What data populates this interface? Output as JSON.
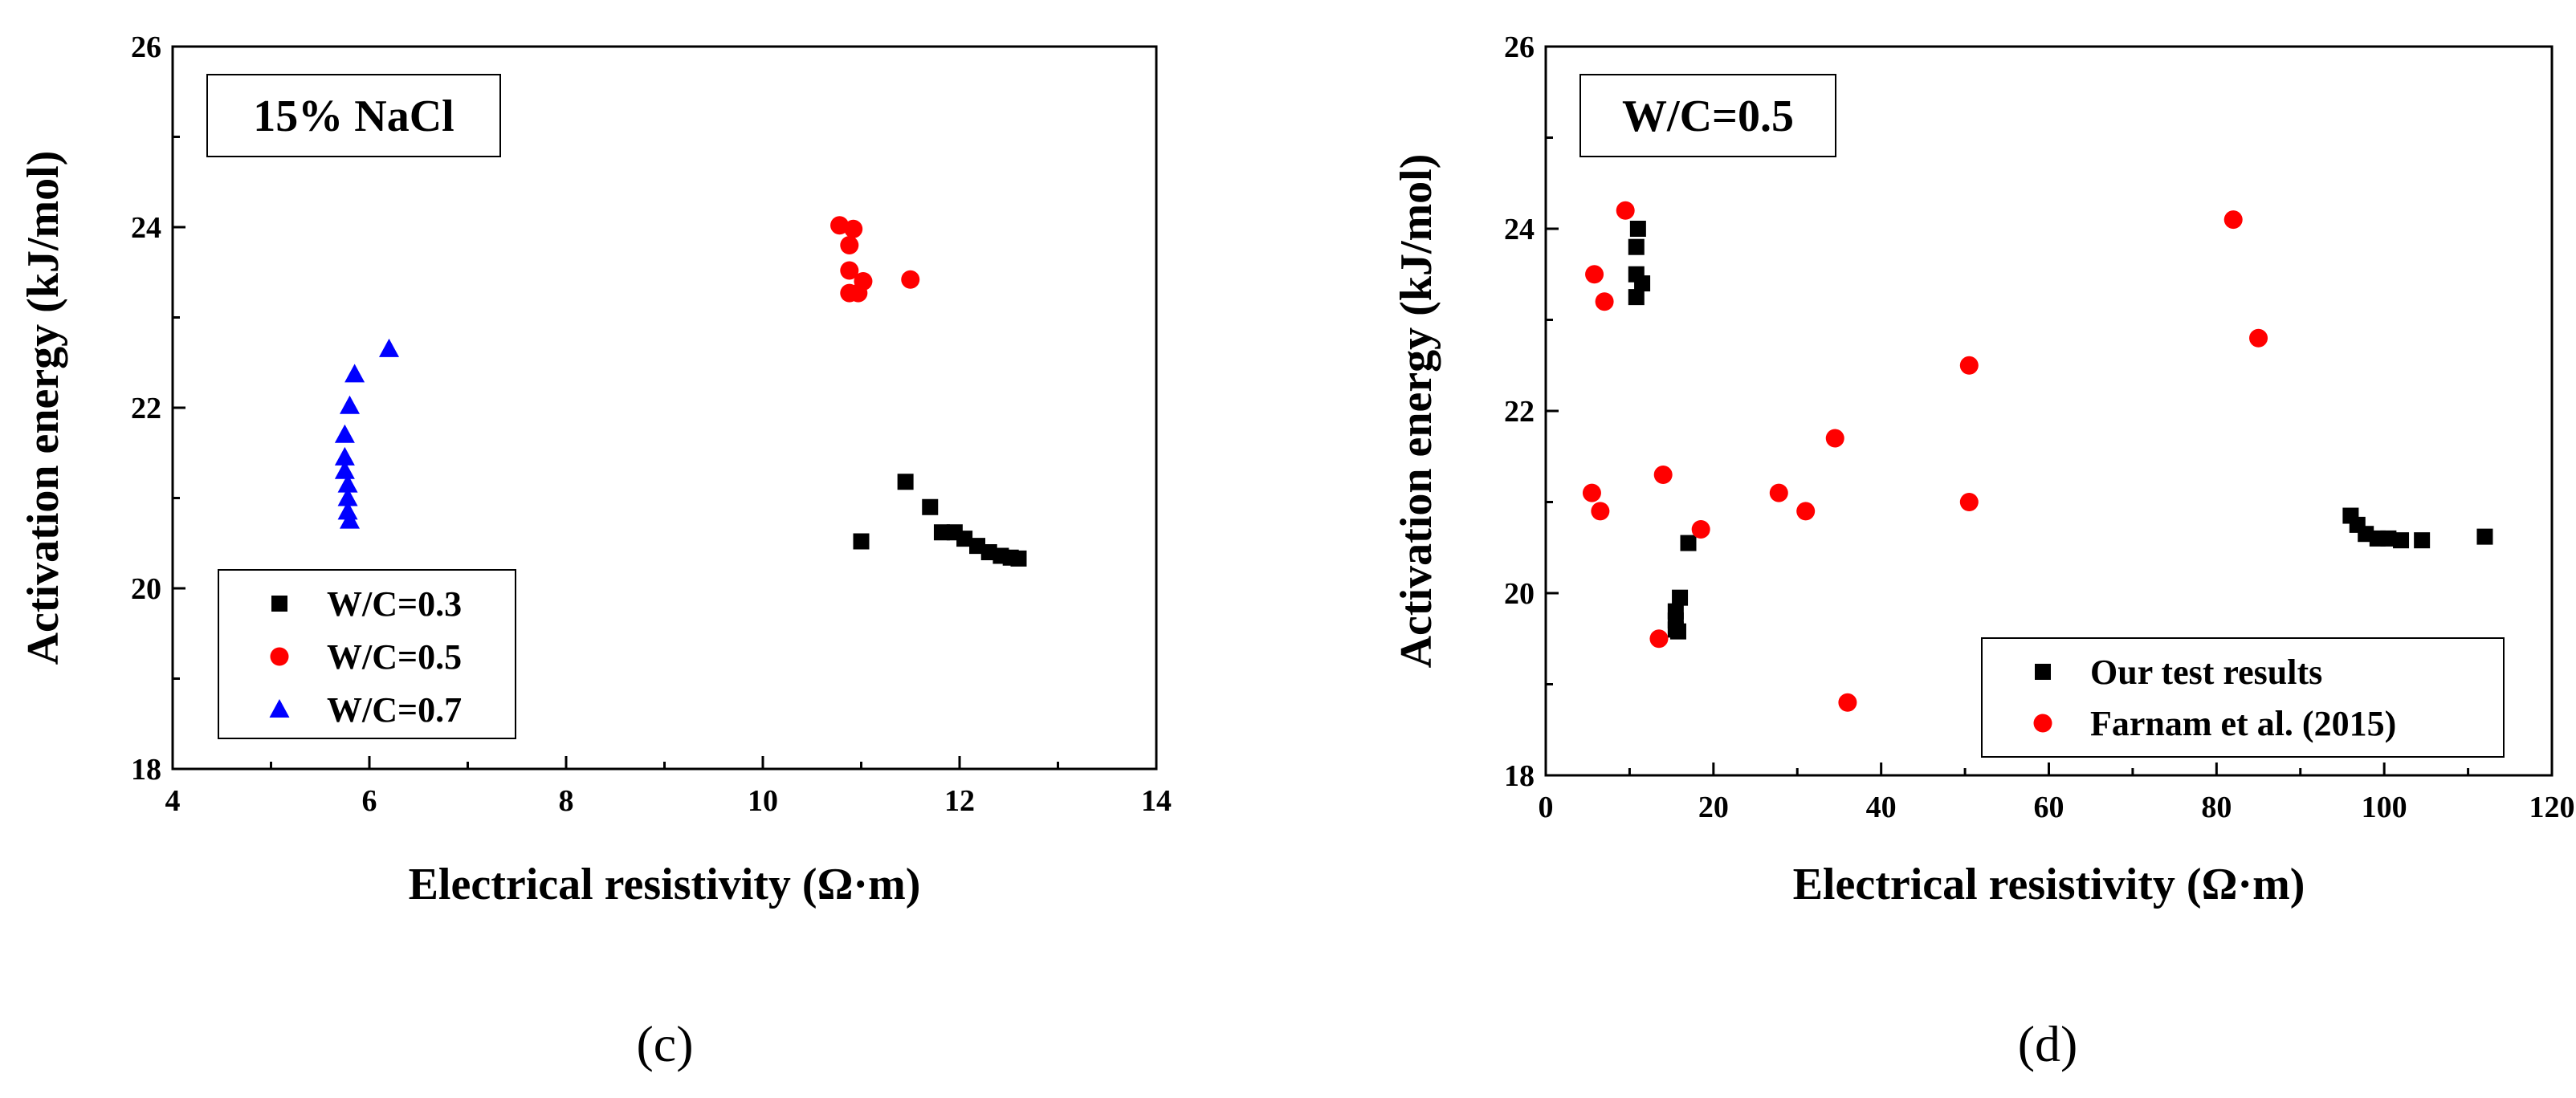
{
  "chart_data": [
    {
      "type": "scatter",
      "annotation": "15% NaCl",
      "xlabel": "Electrical resistivity (Ω·m)",
      "ylabel": "Activation energy (kJ/mol)",
      "xlim": [
        4,
        14
      ],
      "ylim": [
        18,
        26
      ],
      "xticks": [
        4,
        6,
        8,
        10,
        12,
        14
      ],
      "yticks": [
        18,
        20,
        22,
        24,
        26
      ],
      "legend_position": "bottom-left",
      "caption": "(c)",
      "series": [
        {
          "name": "W/C=0.3",
          "marker": "square",
          "color": "#000000",
          "points": [
            [
              11.0,
              20.52
            ],
            [
              11.45,
              21.18
            ],
            [
              11.7,
              20.9
            ],
            [
              11.82,
              20.62
            ],
            [
              11.95,
              20.62
            ],
            [
              12.05,
              20.55
            ],
            [
              12.18,
              20.47
            ],
            [
              12.3,
              20.4
            ],
            [
              12.42,
              20.36
            ],
            [
              12.52,
              20.34
            ],
            [
              12.6,
              20.33
            ]
          ]
        },
        {
          "name": "W/C=0.5",
          "marker": "circle",
          "color": "#ff0000",
          "points": [
            [
              10.78,
              24.02
            ],
            [
              10.92,
              23.98
            ],
            [
              10.88,
              23.8
            ],
            [
              10.88,
              23.52
            ],
            [
              11.02,
              23.4
            ],
            [
              10.88,
              23.27
            ],
            [
              10.97,
              23.27
            ],
            [
              11.5,
              23.42
            ]
          ]
        },
        {
          "name": "W/C=0.7",
          "marker": "triangle",
          "color": "#0000ff",
          "points": [
            [
              6.2,
              22.65
            ],
            [
              5.85,
              22.37
            ],
            [
              5.8,
              22.02
            ],
            [
              5.75,
              21.7
            ],
            [
              5.75,
              21.45
            ],
            [
              5.75,
              21.3
            ],
            [
              5.78,
              21.15
            ],
            [
              5.78,
              21.0
            ],
            [
              5.78,
              20.85
            ],
            [
              5.8,
              20.75
            ]
          ]
        }
      ]
    },
    {
      "type": "scatter",
      "annotation": "W/C=0.5",
      "xlabel": "Electrical resistivity (Ω·m)",
      "ylabel": "Activation energy (kJ/mol)",
      "xlim": [
        0,
        120
      ],
      "ylim": [
        18,
        26
      ],
      "xticks": [
        0,
        20,
        40,
        60,
        80,
        100,
        120
      ],
      "yticks": [
        18,
        20,
        22,
        24,
        26
      ],
      "legend_position": "bottom-right",
      "caption": "(d)",
      "series": [
        {
          "name": "Our test results",
          "marker": "square",
          "color": "#000000",
          "points": [
            [
              11.0,
              24.0
            ],
            [
              10.8,
              23.8
            ],
            [
              10.8,
              23.5
            ],
            [
              11.5,
              23.4
            ],
            [
              10.8,
              23.25
            ],
            [
              17.0,
              20.55
            ],
            [
              16.0,
              19.95
            ],
            [
              15.5,
              19.8
            ],
            [
              15.5,
              19.7
            ],
            [
              15.5,
              19.6
            ],
            [
              15.8,
              19.58
            ],
            [
              96.0,
              20.85
            ],
            [
              96.8,
              20.75
            ],
            [
              97.8,
              20.65
            ],
            [
              99.2,
              20.6
            ],
            [
              100.5,
              20.6
            ],
            [
              102.0,
              20.58
            ],
            [
              104.5,
              20.58
            ],
            [
              112.0,
              20.62
            ]
          ]
        },
        {
          "name": "Farnam et al. (2015)",
          "marker": "circle",
          "color": "#ff0000",
          "points": [
            [
              9.5,
              24.2
            ],
            [
              5.8,
              23.5
            ],
            [
              7.0,
              23.2
            ],
            [
              5.5,
              21.1
            ],
            [
              6.5,
              20.9
            ],
            [
              14.0,
              21.3
            ],
            [
              18.5,
              20.7
            ],
            [
              13.5,
              19.5
            ],
            [
              27.8,
              21.1
            ],
            [
              31.0,
              20.9
            ],
            [
              34.5,
              21.7
            ],
            [
              36.0,
              18.8
            ],
            [
              50.5,
              22.5
            ],
            [
              50.5,
              21.0
            ],
            [
              82.0,
              24.1
            ],
            [
              85.0,
              22.8
            ]
          ]
        }
      ]
    }
  ]
}
